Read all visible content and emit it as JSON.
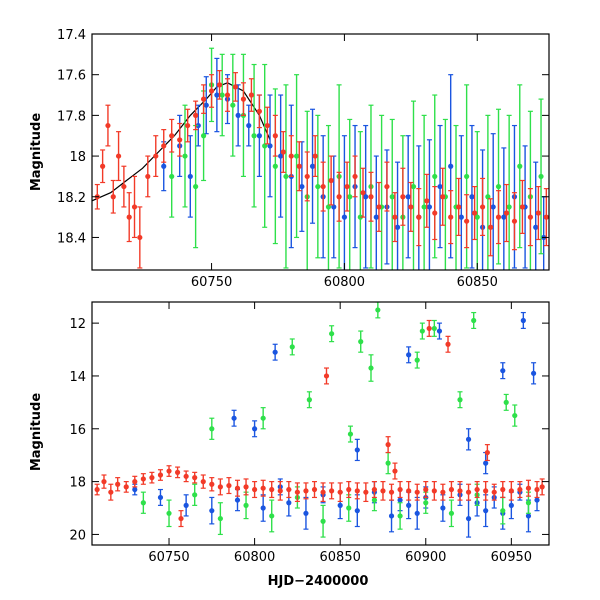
{
  "chart_data": [
    {
      "type": "scatter",
      "title": "",
      "xlabel": "",
      "ylabel": "Magnitude",
      "xlim": [
        60705,
        60877
      ],
      "ylim": [
        18.56,
        17.4
      ],
      "y_inverted": true,
      "grid": false,
      "xticks": [
        60750,
        60800,
        60850
      ],
      "xtick_labels": [
        "60750",
        "60800",
        "60850"
      ],
      "yticks": [
        17.4,
        17.6,
        17.8,
        18,
        18.2,
        18.4
      ],
      "ytick_labels": [
        "17.4",
        "17.6",
        "17.8",
        "18",
        "18.2",
        "18.4"
      ],
      "model_curve": {
        "name": "model",
        "color": "#000000",
        "x": [
          60705,
          60712,
          60718,
          60724,
          60730,
          60736,
          60742,
          60748,
          60752,
          60756,
          60762,
          60768,
          60772
        ],
        "y": [
          18.22,
          18.18,
          18.12,
          18.06,
          17.98,
          17.9,
          17.8,
          17.72,
          17.66,
          17.64,
          17.68,
          17.8,
          17.92
        ]
      },
      "series": [
        {
          "name": "blue",
          "color": "#1a55e0",
          "x": [
            60732,
            60738,
            60742,
            60745,
            60748,
            60752,
            60756,
            60760,
            60764,
            60768,
            60772,
            60776,
            60780,
            60784,
            60788,
            60792,
            60796,
            60800,
            60804,
            60808,
            60812,
            60816,
            60820,
            60824,
            60828,
            60832,
            60836,
            60840,
            60844,
            60848,
            60852,
            60856,
            60860,
            60864,
            60868,
            60872,
            60875
          ],
          "y": [
            18.05,
            17.95,
            18.1,
            17.85,
            17.75,
            17.7,
            17.72,
            17.8,
            17.85,
            17.9,
            17.95,
            18.0,
            18.1,
            18.15,
            18.05,
            18.2,
            18.25,
            18.3,
            18.15,
            18.2,
            18.3,
            18.25,
            18.35,
            18.2,
            18.3,
            18.25,
            18.15,
            18.05,
            18.3,
            18.2,
            18.35,
            18.25,
            18.3,
            18.2,
            18.25,
            18.35,
            18.4
          ],
          "yerr": [
            0.12,
            0.15,
            0.2,
            0.1,
            0.14,
            0.18,
            0.12,
            0.15,
            0.1,
            0.2,
            0.25,
            0.3,
            0.35,
            0.22,
            0.28,
            0.3,
            0.25,
            0.4,
            0.3,
            0.35,
            0.3,
            0.28,
            0.32,
            0.3,
            0.35,
            0.33,
            0.3,
            0.45,
            0.4,
            0.35,
            0.38,
            0.36,
            0.34,
            0.35,
            0.3,
            0.32,
            0.2
          ]
        },
        {
          "name": "green",
          "color": "#2ee04a",
          "x": [
            60735,
            60740,
            60744,
            60747,
            60750,
            60754,
            60758,
            60762,
            60766,
            60770,
            60774,
            60778,
            60782,
            60786,
            60790,
            60794,
            60798,
            60802,
            60806,
            60810,
            60814,
            60818,
            60822,
            60826,
            60830,
            60834,
            60838,
            60842,
            60846,
            60850,
            60854,
            60858,
            60862,
            60866,
            60870,
            60874
          ],
          "y": [
            18.1,
            18.0,
            18.15,
            17.9,
            17.65,
            17.7,
            17.75,
            17.8,
            17.9,
            17.95,
            18.05,
            18.1,
            18.0,
            18.2,
            18.15,
            18.25,
            18.1,
            18.2,
            18.3,
            18.15,
            18.25,
            18.2,
            18.3,
            18.15,
            18.25,
            18.1,
            18.2,
            18.25,
            18.1,
            18.3,
            18.2,
            18.15,
            18.25,
            18.05,
            18.2,
            18.1
          ],
          "yerr": [
            0.2,
            0.25,
            0.3,
            0.22,
            0.18,
            0.2,
            0.25,
            0.3,
            0.35,
            0.4,
            0.38,
            0.45,
            0.4,
            0.42,
            0.35,
            0.4,
            0.45,
            0.38,
            0.42,
            0.4,
            0.45,
            0.38,
            0.4,
            0.42,
            0.45,
            0.4,
            0.38,
            0.4,
            0.45,
            0.42,
            0.4,
            0.38,
            0.45,
            0.4,
            0.42,
            0.38
          ]
        },
        {
          "name": "red",
          "color": "#f23a28",
          "x": [
            60707,
            60709,
            60711,
            60713,
            60715,
            60717,
            60719,
            60721,
            60723,
            60726,
            60729,
            60732,
            60735,
            60738,
            60741,
            60744,
            60747,
            60750,
            60753,
            60756,
            60759,
            60762,
            60765,
            60768,
            60771,
            60774,
            60777,
            60780,
            60783,
            60786,
            60789,
            60792,
            60795,
            60798,
            60801,
            60804,
            60807,
            60810,
            60813,
            60816,
            60819,
            60822,
            60825,
            60828,
            60831,
            60834,
            60837,
            60840,
            60843,
            60846,
            60849,
            60852,
            60855,
            60858,
            60861,
            60864,
            60867,
            60870,
            60873,
            60876
          ],
          "y": [
            18.2,
            18.05,
            17.85,
            18.2,
            18.0,
            18.15,
            18.3,
            18.25,
            18.4,
            18.1,
            18.0,
            17.95,
            17.9,
            17.92,
            17.85,
            17.8,
            17.72,
            17.68,
            17.65,
            17.7,
            17.66,
            17.72,
            17.7,
            17.78,
            17.85,
            17.9,
            17.98,
            18.0,
            18.05,
            18.1,
            18.0,
            18.15,
            18.12,
            18.2,
            18.15,
            18.1,
            18.18,
            18.2,
            18.25,
            18.15,
            18.3,
            18.2,
            18.25,
            18.3,
            18.22,
            18.28,
            18.2,
            18.3,
            18.25,
            18.32,
            18.28,
            18.25,
            18.35,
            18.3,
            18.28,
            18.32,
            18.25,
            18.3,
            18.28,
            18.3
          ],
          "yerr": [
            0.06,
            0.08,
            0.1,
            0.08,
            0.12,
            0.1,
            0.12,
            0.15,
            0.15,
            0.1,
            0.1,
            0.08,
            0.08,
            0.08,
            0.08,
            0.07,
            0.07,
            0.08,
            0.07,
            0.08,
            0.07,
            0.08,
            0.08,
            0.08,
            0.09,
            0.1,
            0.1,
            0.1,
            0.12,
            0.12,
            0.1,
            0.12,
            0.12,
            0.12,
            0.12,
            0.1,
            0.12,
            0.12,
            0.12,
            0.12,
            0.12,
            0.14,
            0.12,
            0.14,
            0.13,
            0.13,
            0.14,
            0.13,
            0.14,
            0.13,
            0.13,
            0.14,
            0.14,
            0.13,
            0.14,
            0.14,
            0.13,
            0.14,
            0.13,
            0.14
          ]
        }
      ]
    },
    {
      "type": "scatter",
      "title": "",
      "xlabel": "HJD−2400000",
      "ylabel": "Magnitude",
      "xlim": [
        60705,
        60972
      ],
      "ylim": [
        20.4,
        11.2
      ],
      "y_inverted": true,
      "grid": false,
      "xticks": [
        60750,
        60800,
        60850,
        60900,
        60950
      ],
      "xtick_labels": [
        "60750",
        "60800",
        "60850",
        "60900",
        "60950"
      ],
      "yticks": [
        12,
        14,
        16,
        18,
        20
      ],
      "ytick_labels": [
        "12",
        "14",
        "16",
        "18",
        "20"
      ],
      "series": [
        {
          "name": "blue",
          "color": "#1a55e0",
          "x": [
            60730,
            60745,
            60760,
            60775,
            60790,
            60805,
            60815,
            60820,
            60830,
            60840,
            60850,
            60860,
            60870,
            60880,
            60885,
            60890,
            60895,
            60900,
            60910,
            60920,
            60925,
            60930,
            60935,
            60940,
            60945,
            60950,
            60955,
            60960,
            60965,
            60788,
            60800,
            60812,
            60860,
            60890,
            60925,
            60935,
            60957,
            60963,
            60908,
            60945
          ],
          "y": [
            18.3,
            18.6,
            18.9,
            19.1,
            18.7,
            19.0,
            18.2,
            18.8,
            19.2,
            18.5,
            18.9,
            19.1,
            18.4,
            19.3,
            18.7,
            18.9,
            19.2,
            18.6,
            19.0,
            18.5,
            19.4,
            18.8,
            19.1,
            18.6,
            19.2,
            18.9,
            18.4,
            19.3,
            18.7,
            15.6,
            16.0,
            13.1,
            16.8,
            13.2,
            16.4,
            17.3,
            11.9,
            13.9,
            12.3,
            13.8
          ],
          "yerr": [
            0.2,
            0.3,
            0.4,
            0.5,
            0.4,
            0.5,
            0.3,
            0.5,
            0.6,
            0.3,
            0.5,
            0.6,
            0.4,
            0.6,
            0.4,
            0.5,
            0.6,
            0.4,
            0.5,
            0.4,
            0.7,
            0.5,
            0.6,
            0.4,
            0.6,
            0.5,
            0.3,
            0.6,
            0.4,
            0.3,
            0.3,
            0.3,
            0.4,
            0.3,
            0.4,
            0.4,
            0.3,
            0.4,
            0.3,
            0.3
          ]
        },
        {
          "name": "green",
          "color": "#2ee04a",
          "x": [
            60735,
            60750,
            60765,
            60780,
            60795,
            60810,
            60825,
            60840,
            60855,
            60870,
            60885,
            60900,
            60915,
            60930,
            60945,
            60960,
            60775,
            60805,
            60822,
            60832,
            60845,
            60856,
            60862,
            60868,
            60872,
            60898,
            60905,
            60920,
            60928,
            60947,
            60952,
            60878,
            60895
          ],
          "y": [
            18.8,
            19.2,
            18.5,
            19.4,
            18.9,
            19.3,
            18.6,
            19.5,
            19.0,
            18.7,
            19.3,
            18.8,
            19.2,
            18.5,
            19.1,
            18.8,
            16.0,
            15.6,
            12.9,
            14.9,
            12.4,
            16.2,
            12.7,
            13.7,
            11.5,
            12.3,
            12.2,
            14.9,
            11.9,
            15.0,
            15.5,
            17.3,
            13.4
          ],
          "yerr": [
            0.4,
            0.5,
            0.4,
            0.6,
            0.5,
            0.6,
            0.4,
            0.6,
            0.5,
            0.4,
            0.5,
            0.4,
            0.5,
            0.4,
            0.5,
            0.4,
            0.4,
            0.4,
            0.3,
            0.3,
            0.3,
            0.3,
            0.4,
            0.5,
            0.3,
            0.3,
            0.3,
            0.3,
            0.3,
            0.3,
            0.4,
            0.4,
            0.3
          ]
        },
        {
          "name": "red",
          "color": "#f23a28",
          "x": [
            60708,
            60712,
            60716,
            60720,
            60725,
            60730,
            60735,
            60740,
            60745,
            60750,
            60755,
            60760,
            60765,
            60770,
            60775,
            60780,
            60785,
            60790,
            60795,
            60800,
            60805,
            60810,
            60815,
            60820,
            60825,
            60830,
            60835,
            60840,
            60845,
            60850,
            60855,
            60860,
            60865,
            60870,
            60875,
            60880,
            60885,
            60890,
            60895,
            60900,
            60905,
            60910,
            60915,
            60920,
            60925,
            60930,
            60935,
            60940,
            60945,
            60950,
            60955,
            60960,
            60965,
            60968,
            60757,
            60842,
            60878,
            60882,
            60902,
            60913,
            60936
          ],
          "y": [
            18.3,
            18.0,
            18.4,
            18.1,
            18.2,
            18.0,
            17.9,
            17.85,
            17.75,
            17.6,
            17.65,
            17.8,
            17.85,
            18.0,
            18.1,
            18.2,
            18.15,
            18.25,
            18.2,
            18.3,
            18.25,
            18.3,
            18.35,
            18.3,
            18.4,
            18.35,
            18.3,
            18.4,
            18.35,
            18.4,
            18.3,
            18.35,
            18.4,
            18.3,
            18.35,
            18.4,
            18.3,
            18.35,
            18.4,
            18.3,
            18.35,
            18.4,
            18.3,
            18.35,
            18.4,
            18.3,
            18.35,
            18.4,
            18.3,
            18.35,
            18.3,
            18.25,
            18.3,
            18.2,
            19.4,
            14.0,
            16.6,
            17.6,
            12.2,
            12.8,
            16.9
          ],
          "yerr": [
            0.2,
            0.25,
            0.3,
            0.25,
            0.2,
            0.2,
            0.2,
            0.2,
            0.2,
            0.2,
            0.2,
            0.2,
            0.2,
            0.25,
            0.25,
            0.3,
            0.3,
            0.3,
            0.3,
            0.3,
            0.3,
            0.3,
            0.35,
            0.3,
            0.35,
            0.3,
            0.3,
            0.35,
            0.3,
            0.35,
            0.3,
            0.3,
            0.35,
            0.3,
            0.35,
            0.3,
            0.3,
            0.35,
            0.3,
            0.3,
            0.35,
            0.3,
            0.3,
            0.35,
            0.3,
            0.3,
            0.35,
            0.3,
            0.3,
            0.35,
            0.3,
            0.3,
            0.3,
            0.3,
            0.3,
            0.3,
            0.3,
            0.3,
            0.3,
            0.3,
            0.3
          ]
        }
      ]
    }
  ]
}
